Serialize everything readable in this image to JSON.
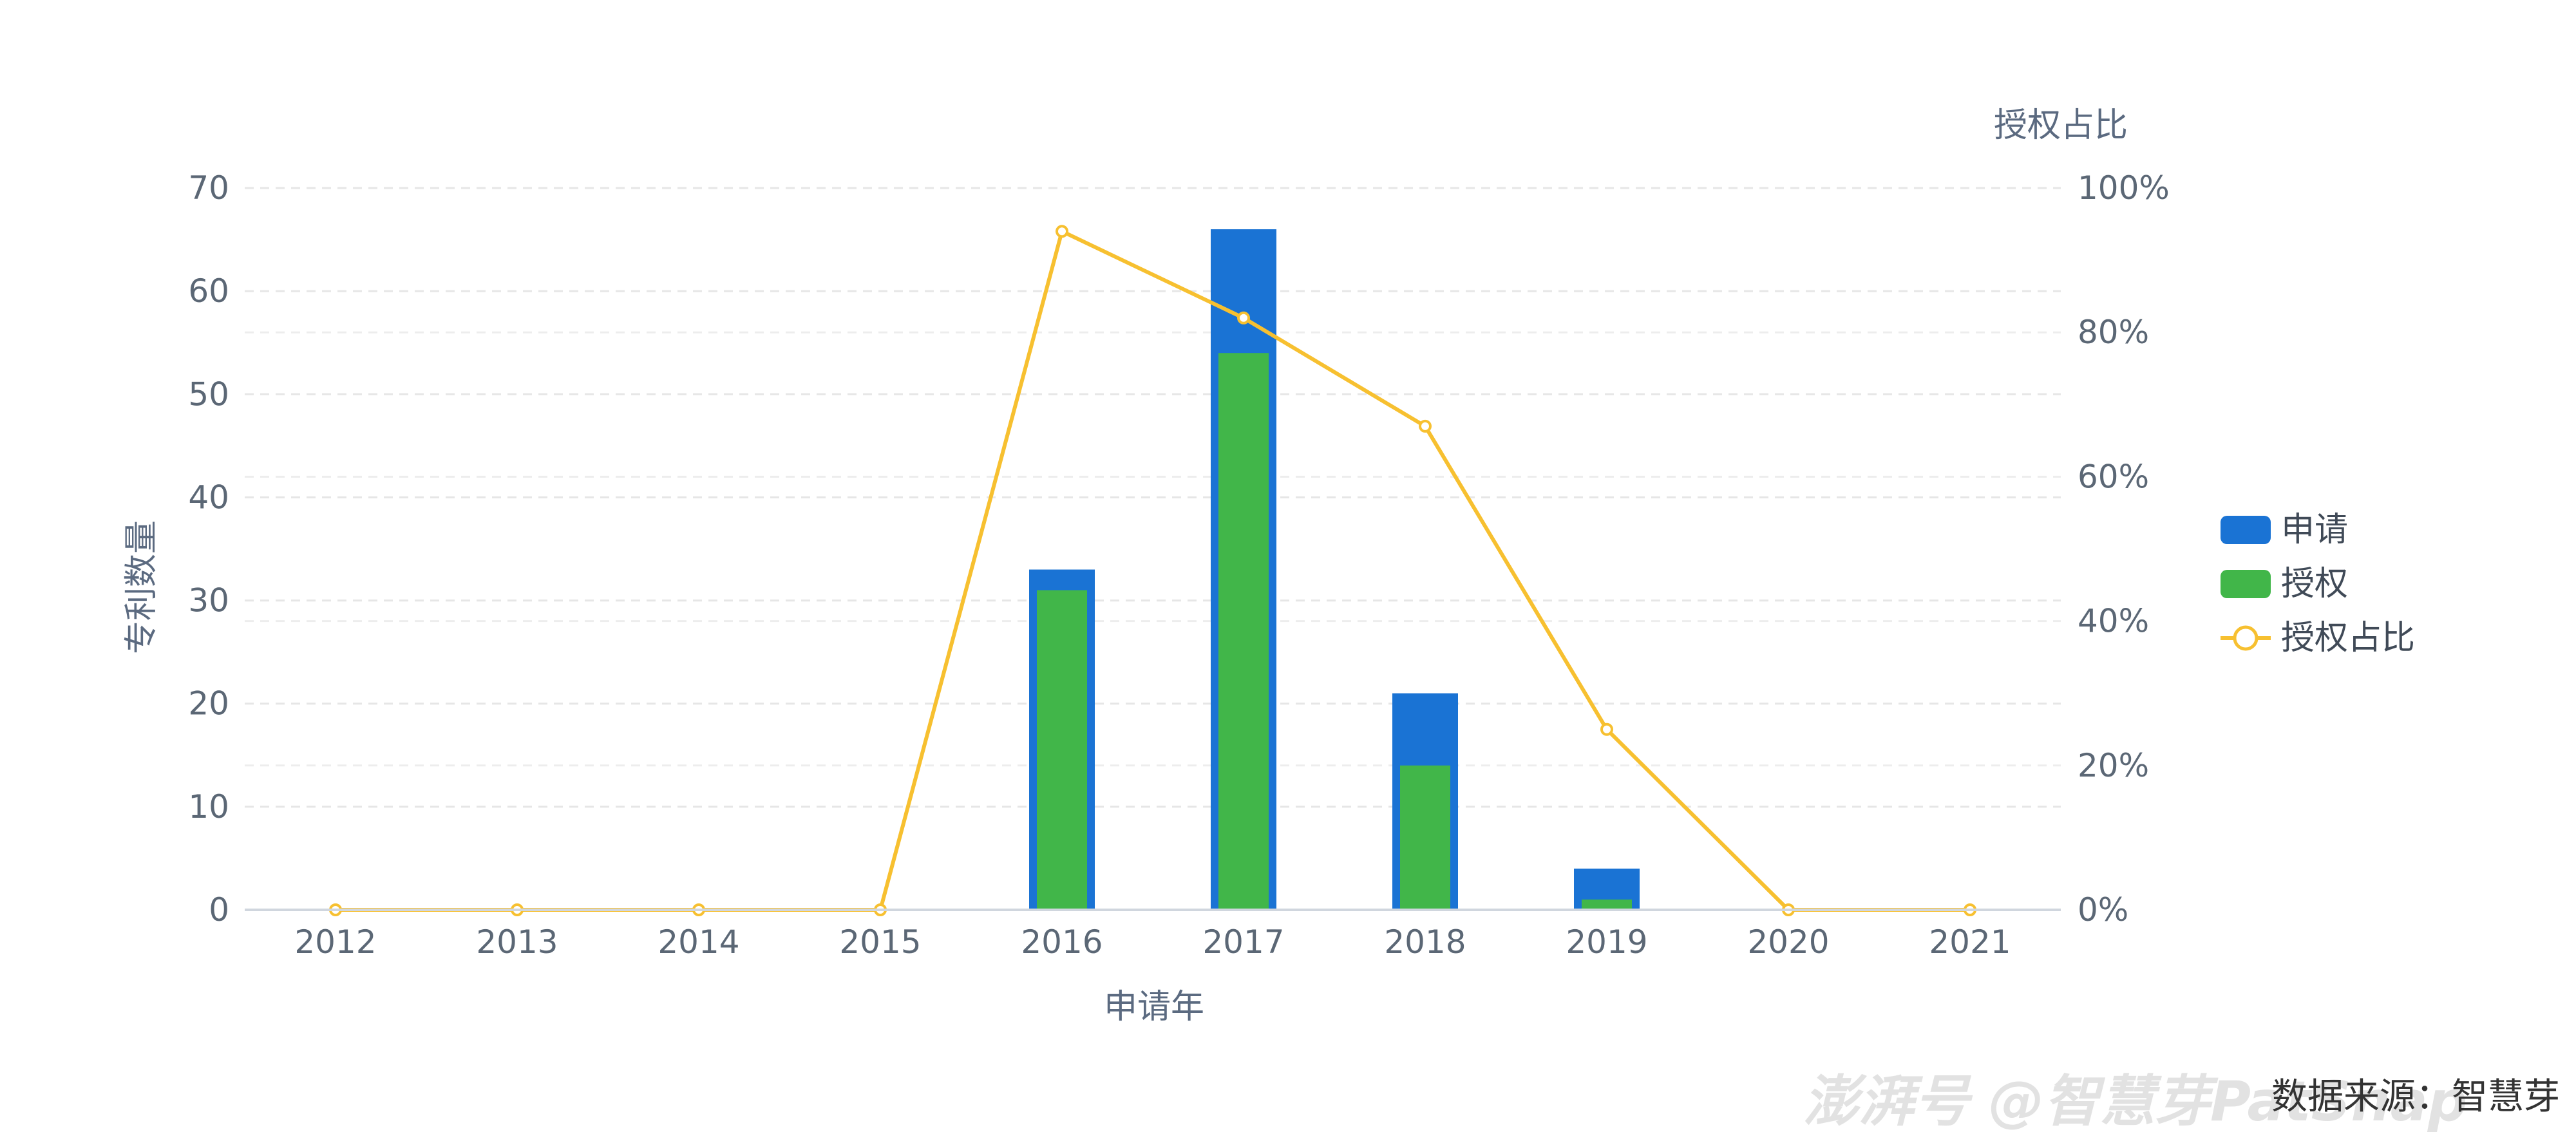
{
  "chart_data": {
    "type": "bar+line",
    "categories": [
      "2012",
      "2013",
      "2014",
      "2015",
      "2016",
      "2017",
      "2018",
      "2019",
      "2020",
      "2021"
    ],
    "series": [
      {
        "name": "申请",
        "type": "bar",
        "axis": "left",
        "color": "#1a73d4",
        "values": [
          0,
          0,
          0,
          0,
          33,
          66,
          21,
          4,
          0,
          0
        ]
      },
      {
        "name": "授权",
        "type": "bar",
        "axis": "left",
        "color": "#41b649",
        "values": [
          0,
          0,
          0,
          0,
          31,
          54,
          14,
          1,
          0,
          0
        ]
      },
      {
        "name": "授权占比",
        "type": "line",
        "axis": "right",
        "color": "#f7c030",
        "values": [
          0,
          0,
          0,
          0,
          94,
          82,
          67,
          25,
          0,
          0
        ]
      }
    ],
    "xlabel": "申请年",
    "ylabel": "专利数量",
    "y2label": "授权占比",
    "ylim": [
      0,
      70
    ],
    "yticks": [
      "0",
      "10",
      "20",
      "30",
      "40",
      "50",
      "60",
      "70"
    ],
    "y2lim": [
      0,
      100
    ],
    "y2ticks": [
      "0%",
      "20%",
      "40%",
      "60%",
      "80%",
      "100%"
    ],
    "grid": true,
    "legend_position": "right",
    "legend": [
      "申请",
      "授权",
      "授权占比"
    ]
  },
  "watermark": {
    "text": "澎湃号 @智慧芽PatSnap"
  },
  "source_note": "数据来源：智慧芽"
}
